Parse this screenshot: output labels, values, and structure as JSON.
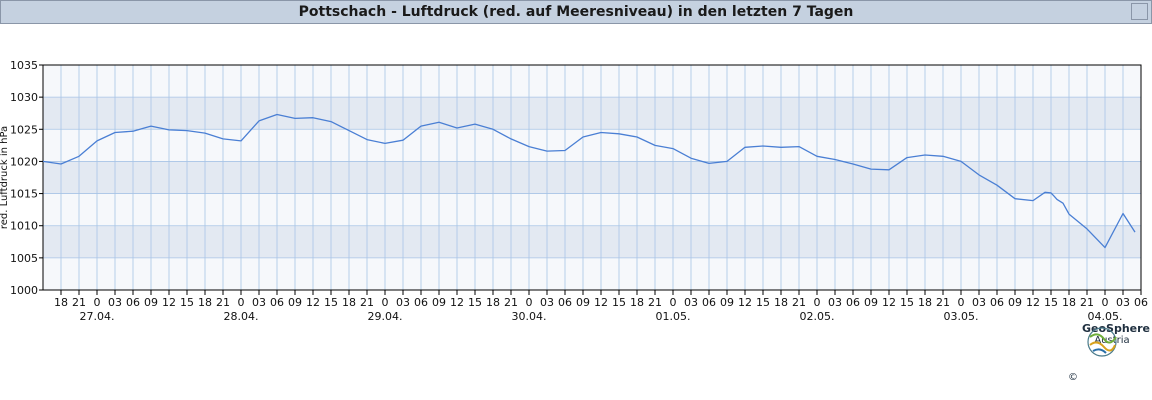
{
  "title": "Pottschach - Luftdruck (red. auf Meeresniveau) in den letzten 7 Tagen",
  "logo": {
    "name": "GeoSphere",
    "sub": "Austria",
    "copyright": "©"
  },
  "colors": {
    "line": "#4a7fd4",
    "band": "#e3e9f2",
    "bg": "#f6f8fb",
    "grid": "#a8c4e6"
  },
  "chart_data": {
    "type": "line",
    "title": "Pottschach - Luftdruck (red. auf Meeresniveau) in den letzten 7 Tagen",
    "ylabel": "red. Luftdruck in hPa",
    "ylim": [
      1000,
      1035
    ],
    "yticks": [
      "1000",
      "1005",
      "1010",
      "1015",
      "1020",
      "1025",
      "1030",
      "1035"
    ],
    "xlim": [
      "26.04. 15:00",
      "04.05. 06:00"
    ],
    "x_hour_ticks": [
      "18",
      "21",
      "0",
      "03",
      "06",
      "09",
      "12",
      "15",
      "18",
      "21",
      "0",
      "03",
      "06",
      "09",
      "12",
      "15",
      "18",
      "21",
      "0",
      "03",
      "06",
      "09",
      "12",
      "15",
      "18",
      "21",
      "0",
      "03",
      "06",
      "09",
      "12",
      "15",
      "18",
      "21",
      "0",
      "03",
      "06",
      "09",
      "12",
      "15",
      "18",
      "21",
      "0",
      "03",
      "06",
      "09",
      "12",
      "15",
      "18",
      "21",
      "0",
      "03",
      "06",
      "09",
      "12",
      "15",
      "18",
      "21",
      "0",
      "03",
      "06"
    ],
    "date_labels": [
      "27.04.",
      "28.04.",
      "29.04.",
      "30.04.",
      "01.05.",
      "02.05.",
      "03.05.",
      "04.05."
    ],
    "grid": true,
    "series": [
      {
        "x": [
          "26.04. 15:00",
          "26.04. 18:00",
          "26.04. 21:00",
          "27.04. 00:00",
          "27.04. 03:00",
          "27.04. 06:00",
          "27.04. 09:00",
          "27.04. 12:00",
          "27.04. 15:00",
          "27.04. 18:00",
          "27.04. 21:00",
          "28.04. 00:00",
          "28.04. 03:00",
          "28.04. 06:00",
          "28.04. 09:00",
          "28.04. 12:00",
          "28.04. 15:00",
          "28.04. 18:00",
          "28.04. 21:00",
          "29.04. 00:00",
          "29.04. 03:00",
          "29.04. 06:00",
          "29.04. 09:00",
          "29.04. 12:00",
          "29.04. 15:00",
          "29.04. 18:00",
          "29.04. 21:00",
          "30.04. 00:00",
          "30.04. 03:00",
          "30.04. 06:00",
          "30.04. 09:00",
          "30.04. 12:00",
          "30.04. 15:00",
          "30.04. 18:00",
          "30.04. 21:00",
          "01.05. 00:00",
          "01.05. 03:00",
          "01.05. 06:00",
          "01.05. 09:00",
          "01.05. 12:00",
          "01.05. 15:00",
          "01.05. 18:00",
          "01.05. 21:00",
          "02.05. 00:00",
          "02.05. 03:00",
          "02.05. 06:00",
          "02.05. 09:00",
          "02.05. 12:00",
          "02.05. 15:00",
          "02.05. 18:00",
          "02.05. 21:00",
          "03.05. 00:00",
          "03.05. 03:00",
          "03.05. 06:00",
          "03.05. 09:00",
          "03.05. 12:00",
          "03.05. 14:00",
          "03.05. 15:00",
          "03.05. 15:30",
          "03.05. 16:00",
          "03.05. 17:00",
          "03.05. 18:00",
          "03.05. 21:00",
          "04.05. 00:00",
          "04.05. 03:00",
          "04.05. 05:00"
        ],
        "values": [
          1020.0,
          1019.6,
          1020.8,
          1023.2,
          1024.5,
          1024.7,
          1025.5,
          1024.9,
          1024.8,
          1024.4,
          1023.5,
          1023.2,
          1026.3,
          1027.3,
          1026.7,
          1026.8,
          1026.2,
          1024.8,
          1023.4,
          1022.8,
          1023.3,
          1025.5,
          1026.1,
          1025.2,
          1025.8,
          1025.0,
          1023.5,
          1022.3,
          1021.6,
          1021.7,
          1023.8,
          1024.5,
          1024.3,
          1023.8,
          1022.5,
          1022.0,
          1020.5,
          1019.7,
          1020.0,
          1022.2,
          1022.4,
          1022.2,
          1022.3,
          1020.8,
          1020.3,
          1019.6,
          1018.8,
          1018.7,
          1020.6,
          1021.0,
          1020.8,
          1020.0,
          1017.9,
          1016.3,
          1014.2,
          1013.9,
          1015.2,
          1015.1,
          1014.6,
          1014.1,
          1013.5,
          1011.8,
          1009.5,
          1006.6,
          1011.9,
          1009.0
        ],
        "values_tail_note": ""
      }
    ]
  }
}
